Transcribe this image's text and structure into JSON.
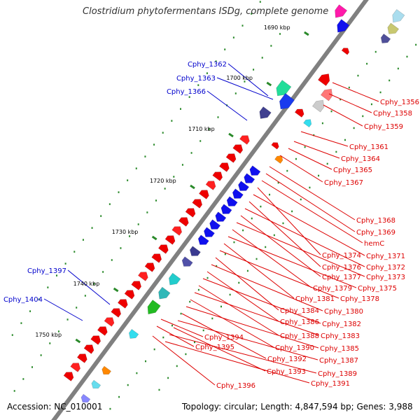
{
  "title": "Clostridium phytofermentans ISDg, complete genome",
  "footer": {
    "accession": "Accession: NC_010001",
    "summary": "Topology: circular; Length: 4,847,594 bp; Genes: 3,988"
  },
  "scale": {
    "unit": "kbp",
    "ticks": [
      "1690 kbp",
      "1700 kbp",
      "1710 kbp",
      "1720 kbp",
      "1730 kbp",
      "1740 kbp",
      "1750 kbp"
    ]
  },
  "colors": {
    "forward_strand_labels": "#0000cc",
    "reverse_strand_labels": "#dd0000",
    "backbone": "#808080",
    "tick_marks": "#2a8a2a"
  },
  "labels_left": [
    "Cphy_1362",
    "Cphy_1363",
    "Cphy_1366",
    "Cphy_1397",
    "Cphy_1404"
  ],
  "labels_right": [
    "Cphy_1356",
    "Cphy_1358",
    "Cphy_1359",
    "Cphy_1361",
    "Cphy_1364",
    "Cphy_1365",
    "Cphy_1367",
    "Cphy_1368",
    "Cphy_1369",
    "hemC",
    "Cphy_1374",
    "Cphy_1371",
    "Cphy_1376",
    "Cphy_1372",
    "Cphy_1377",
    "Cphy_1373",
    "Cphy_1379",
    "Cphy_1375",
    "Cphy_1381",
    "Cphy_1378",
    "Cphy_1384",
    "Cphy_1380",
    "Cphy_1386",
    "Cphy_1382",
    "Cphy_1388",
    "Cphy_1383",
    "Cphy_1390",
    "Cphy_1385",
    "Cphy_1392",
    "Cphy_1387",
    "Cphy_1393",
    "Cphy_1389",
    "Cphy_1391",
    "Cphy_1394",
    "Cphy_1395",
    "Cphy_1396"
  ]
}
